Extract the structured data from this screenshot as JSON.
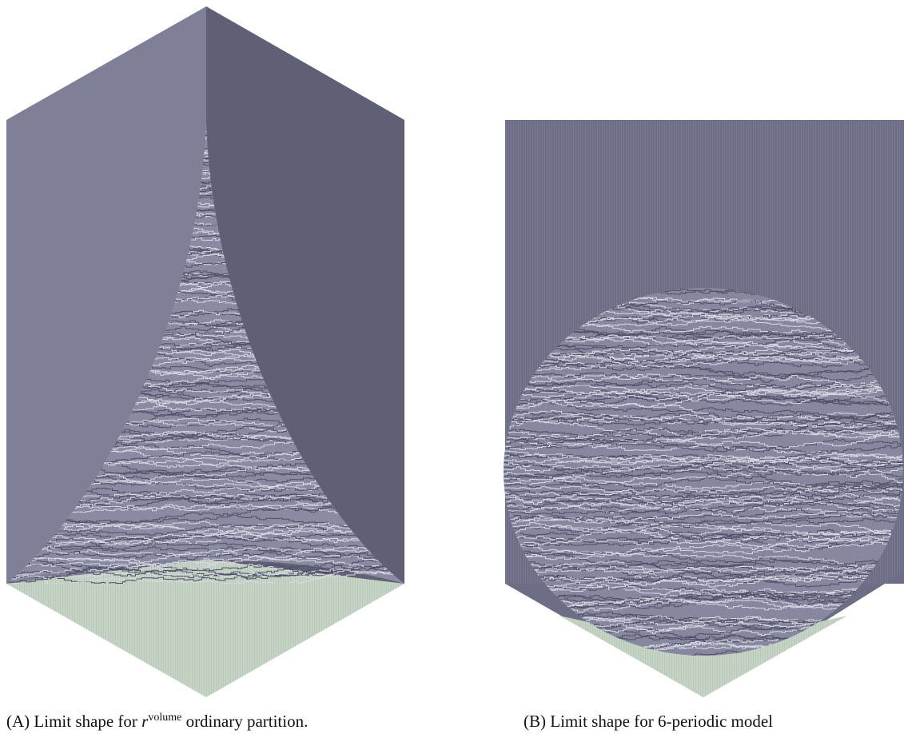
{
  "figures": [
    {
      "label": "(A)",
      "caption_before": "Limit shape for",
      "math_base": "r",
      "math_sup": "volume",
      "caption_after": "ordinary partition."
    },
    {
      "label": "(B)",
      "caption": "Limit shape for 6-periodic model"
    }
  ]
}
